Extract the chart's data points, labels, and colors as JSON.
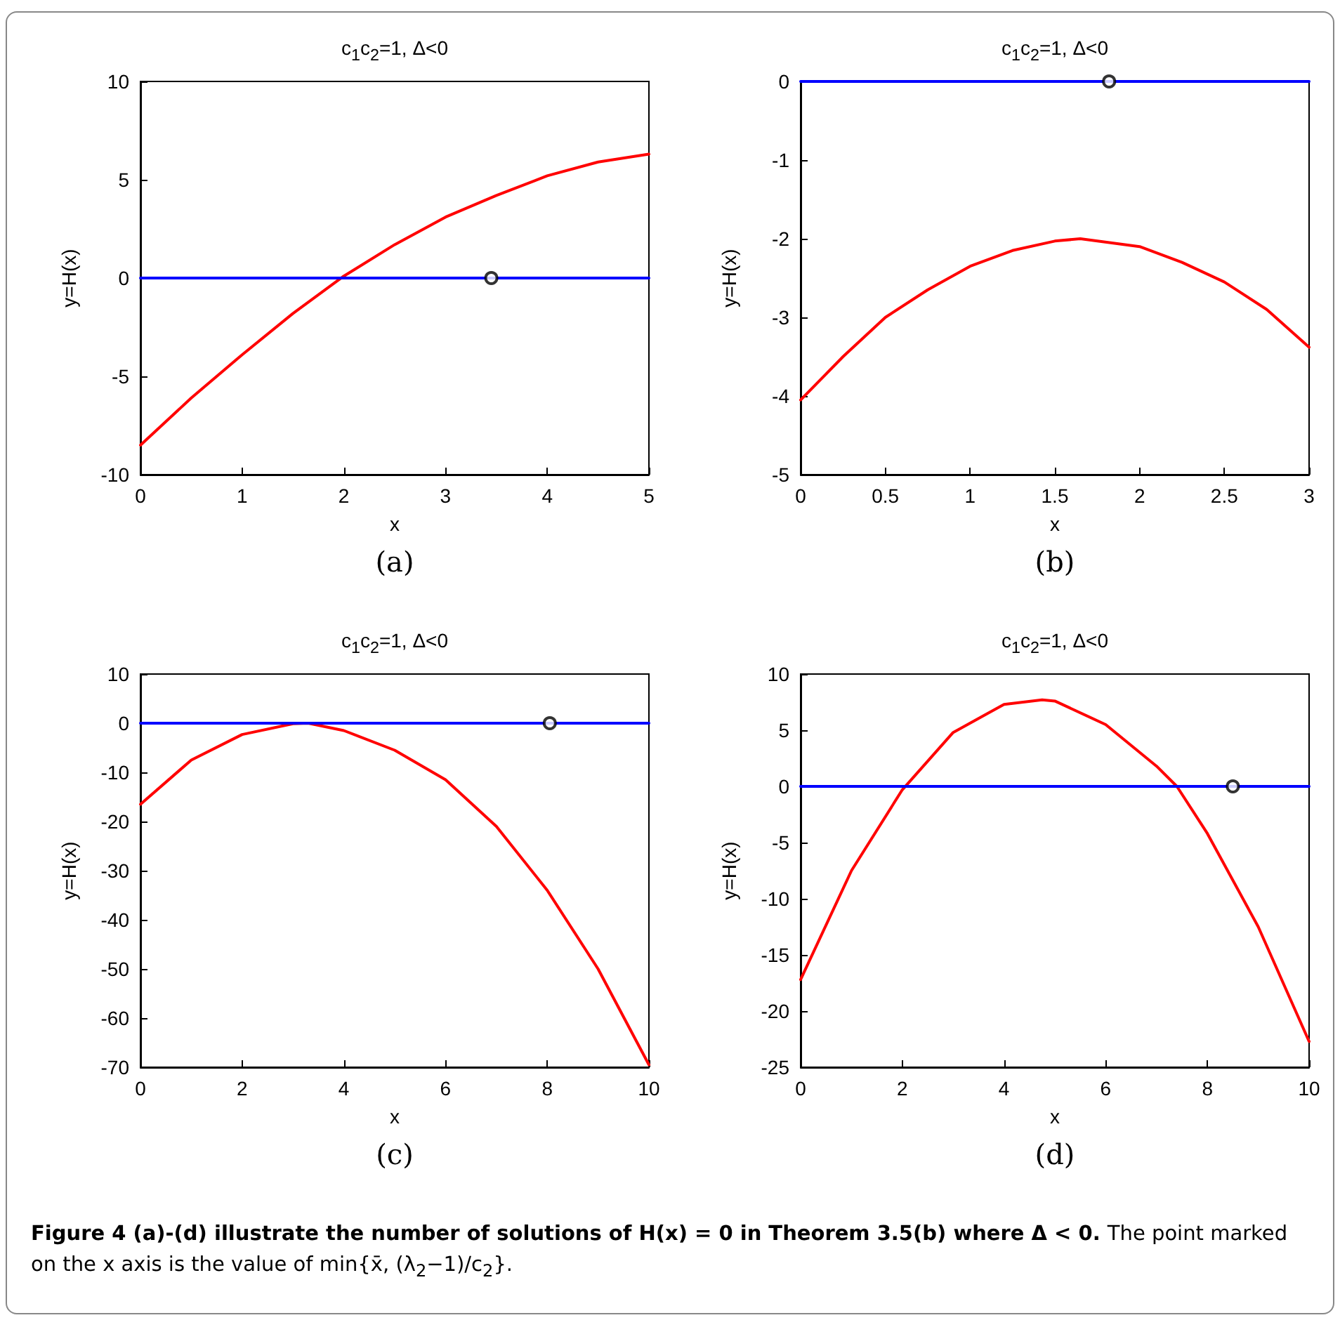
{
  "chart_data": [
    {
      "type": "line",
      "title": "c$_{1}$c$_{2}$=1, Δ<0",
      "xlabel": "x",
      "ylabel": "y=H(x)",
      "annotations": [
        "(a)"
      ],
      "xlim": [
        0,
        5
      ],
      "xticks": [
        0,
        1,
        2,
        3,
        4,
        5
      ],
      "ylim": [
        -10,
        10
      ],
      "yticks": [
        -10,
        -5,
        0,
        5,
        10
      ],
      "series": [
        {
          "color": "#ff0000",
          "x": [
            0,
            0.5,
            1,
            1.5,
            2,
            2.5,
            3,
            3.5,
            4,
            4.5,
            5
          ],
          "values": [
            -8.5,
            -6.1,
            -3.9,
            -1.8,
            0.1,
            1.7,
            3.1,
            4.2,
            5.2,
            5.9,
            6.3
          ]
        },
        {
          "color": "#0000ff",
          "x": [
            0,
            5
          ],
          "values": [
            0,
            0
          ]
        },
        {
          "type": "scatter",
          "marker": "circle",
          "color": "#000000",
          "x": [
            3.45
          ],
          "values": [
            0
          ]
        }
      ]
    },
    {
      "type": "line",
      "title": "c$_{1}$c$_{2}$=1, Δ<0",
      "xlabel": "x",
      "ylabel": "y=H(x)",
      "annotations": [
        "(b)"
      ],
      "xlim": [
        0,
        3
      ],
      "xticks": [
        0,
        0.5,
        1,
        1.5,
        2,
        2.5,
        3
      ],
      "ylim": [
        -5,
        0
      ],
      "yticks": [
        -5,
        -4,
        -3,
        -2,
        -1,
        0
      ],
      "series": [
        {
          "color": "#ff0000",
          "x": [
            0,
            0.25,
            0.5,
            0.75,
            1,
            1.25,
            1.5,
            1.65,
            2,
            2.25,
            2.5,
            2.75,
            3
          ],
          "values": [
            -4.05,
            -3.5,
            -3.0,
            -2.65,
            -2.35,
            -2.15,
            -2.03,
            -2.0,
            -2.1,
            -2.3,
            -2.55,
            -2.9,
            -3.38
          ]
        },
        {
          "color": "#0000ff",
          "x": [
            0,
            3
          ],
          "values": [
            0,
            0
          ]
        },
        {
          "type": "scatter",
          "marker": "circle",
          "color": "#000000",
          "x": [
            1.82
          ],
          "values": [
            0
          ]
        }
      ]
    },
    {
      "type": "line",
      "title": "c$_{1}$c$_{2}$=1, Δ<0",
      "xlabel": "x",
      "ylabel": "y=H(x)",
      "annotations": [
        "(c)"
      ],
      "xlim": [
        0,
        10
      ],
      "xticks": [
        0,
        2,
        4,
        6,
        8,
        10
      ],
      "ylim": [
        -70,
        10
      ],
      "yticks": [
        -70,
        -60,
        -50,
        -40,
        -30,
        -20,
        -10,
        0,
        10
      ],
      "series": [
        {
          "color": "#ff0000",
          "x": [
            0,
            1,
            2,
            3,
            3.3,
            4,
            5,
            6,
            7,
            8,
            9,
            10
          ],
          "values": [
            -16.5,
            -7.5,
            -2.3,
            -0.1,
            0,
            -1.5,
            -5.5,
            -11.5,
            -21,
            -34,
            -50,
            -69.5
          ]
        },
        {
          "color": "#0000ff",
          "x": [
            0,
            10
          ],
          "values": [
            0,
            0
          ]
        },
        {
          "type": "scatter",
          "marker": "circle",
          "color": "#000000",
          "x": [
            8.05
          ],
          "values": [
            0
          ]
        }
      ]
    },
    {
      "type": "line",
      "title": "c$_{1}$c$_{2}$=1, Δ<0",
      "xlabel": "x",
      "ylabel": "y=H(x)",
      "annotations": [
        "(d)",
        "Figure 4  (a)-(d) illustrate the number of solutions of H(x) = 0 in Theorem 3.5(b) where Δ < 0.",
        "The point marked on the x axis is the value of min{x̄, (λ$_{2}$−1)/c$_{2}$}."
      ],
      "xlim": [
        0,
        10
      ],
      "xticks": [
        0,
        2,
        4,
        6,
        8,
        10
      ],
      "ylim": [
        -25,
        10
      ],
      "yticks": [
        -25,
        -20,
        -15,
        -10,
        -5,
        0,
        5,
        10
      ],
      "series": [
        {
          "color": "#ff0000",
          "x": [
            0,
            1,
            2,
            3,
            4,
            4.75,
            5,
            6,
            7,
            7.4,
            8,
            9,
            10
          ],
          "values": [
            -17.2,
            -7.5,
            -0.3,
            4.8,
            7.3,
            7.7,
            7.6,
            5.5,
            1.8,
            0,
            -4.2,
            -12.5,
            -22.7
          ]
        },
        {
          "color": "#0000ff",
          "x": [
            0,
            10
          ],
          "values": [
            0,
            0
          ]
        },
        {
          "type": "scatter",
          "marker": "circle",
          "color": "#000000",
          "x": [
            8.5
          ],
          "values": [
            0
          ]
        }
      ]
    }
  ]
}
